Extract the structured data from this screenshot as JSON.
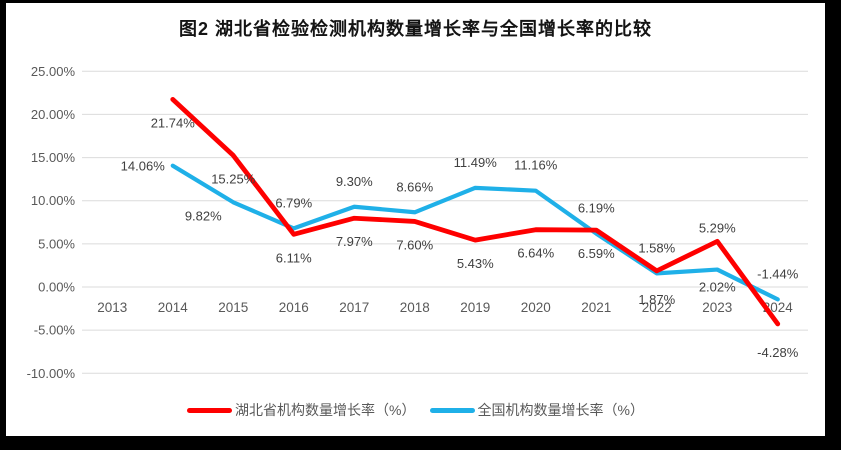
{
  "title": "图2  湖北省检验检测机构数量增长率与全国增长率的比较",
  "chart_data": {
    "type": "line",
    "categories": [
      "2013",
      "2014",
      "2015",
      "2016",
      "2017",
      "2018",
      "2019",
      "2020",
      "2021",
      "2022",
      "2023",
      "2024"
    ],
    "series": [
      {
        "name": "湖北省机构数量增长率（%）",
        "color": "#FE0000",
        "stroke_width": 4.8,
        "values": [
          null,
          21.74,
          15.25,
          6.11,
          7.97,
          7.6,
          5.43,
          6.64,
          6.59,
          1.87,
          5.29,
          -4.28
        ],
        "point_labels": [
          null,
          "21.74%",
          "15.25%",
          "6.11%",
          "7.97%",
          "7.60%",
          "5.43%",
          "6.64%",
          "6.59%",
          "1.87%",
          "5.29%",
          "-4.28%"
        ],
        "label_placement": [
          null,
          "below",
          "below",
          "below",
          "below",
          "below",
          "below",
          "below",
          "below",
          "below-far",
          "above-near",
          "below-far"
        ]
      },
      {
        "name": "全国机构数量增长率（%）",
        "color": "#1FB0E8",
        "stroke_width": 4.2,
        "values": [
          null,
          14.06,
          9.82,
          6.79,
          9.3,
          8.66,
          11.49,
          11.16,
          6.19,
          1.58,
          2.02,
          -1.44
        ],
        "point_labels": [
          null,
          "14.06%",
          "9.82%",
          "6.79%",
          "9.30%",
          "8.66%",
          "11.49%",
          "11.16%",
          "6.19%",
          "1.58%",
          "2.02%",
          "-1.44%"
        ],
        "label_placement": [
          null,
          "left",
          "below-left",
          "above",
          "above",
          "above",
          "above",
          "above",
          "above",
          "above",
          "below-near",
          "above"
        ]
      }
    ],
    "y_axis": {
      "ticks": [
        "25.00%",
        "20.00%",
        "15.00%",
        "10.00%",
        "5.00%",
        "0.00%",
        "-5.00%",
        "-10.00%"
      ],
      "max": 25,
      "min": -10,
      "step": 5
    },
    "grid": true,
    "legend_position": "bottom",
    "gridline_color": "#DBDBDB",
    "axis_label_color": "#595959",
    "data_label_color": "#404040"
  }
}
